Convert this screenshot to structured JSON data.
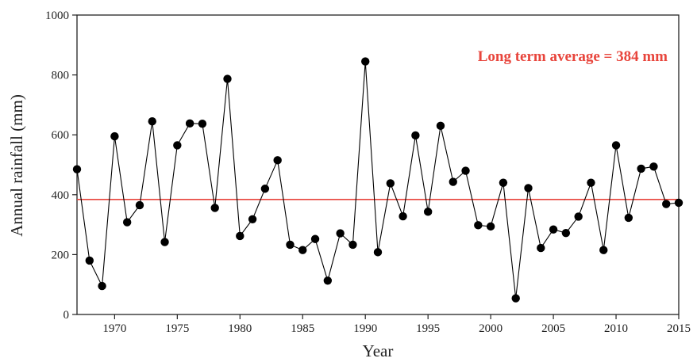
{
  "chart_data": {
    "type": "line",
    "xlabel": "Year",
    "ylabel": "Annual rainfall (mm)",
    "xlim": [
      1967,
      2015
    ],
    "ylim": [
      0,
      1000
    ],
    "x_ticks": [
      1970,
      1975,
      1980,
      1985,
      1990,
      1995,
      2000,
      2005,
      2010,
      2015
    ],
    "y_ticks": [
      0,
      200,
      400,
      600,
      800,
      1000
    ],
    "grid": false,
    "series": [
      {
        "x": [
          1967,
          1968,
          1969,
          1970,
          1971,
          1972,
          1973,
          1974,
          1975,
          1976,
          1977,
          1978,
          1979,
          1980,
          1981,
          1982,
          1983,
          1984,
          1985,
          1986,
          1987,
          1988,
          1989,
          1990,
          1991,
          1992,
          1993,
          1994,
          1995,
          1996,
          1997,
          1998,
          1999,
          2000,
          2001,
          2002,
          2003,
          2004,
          2005,
          2006,
          2007,
          2008,
          2009,
          2010,
          2011,
          2012,
          2013,
          2014,
          2015
        ],
        "y": [
          485,
          180,
          95,
          595,
          308,
          365,
          645,
          242,
          565,
          638,
          637,
          356,
          787,
          262,
          318,
          420,
          515,
          233,
          215,
          252,
          113,
          271,
          233,
          845,
          208,
          438,
          328,
          598,
          343,
          630,
          443,
          480,
          298,
          294,
          440,
          54,
          422,
          222,
          284,
          272,
          327,
          440,
          215,
          565,
          323,
          487,
          494,
          369,
          373
        ],
        "color": "#000000"
      }
    ],
    "reference_line": {
      "value": 384,
      "label": "Long term average = 384 mm",
      "color": "#e8453c"
    }
  }
}
